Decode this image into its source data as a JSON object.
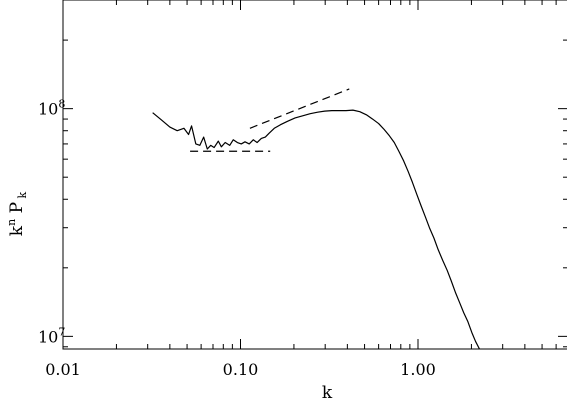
{
  "chart_data": {
    "type": "line",
    "title": "",
    "xlabel": "k",
    "ylabel": "k^n P_k",
    "x_scale": "log",
    "y_scale": "log",
    "xlim": [
      0.01,
      7
    ],
    "ylim": [
      8800000,
      300000000
    ],
    "grid": false,
    "x_ticks": [
      {
        "value": 0.01,
        "label": "0.01"
      },
      {
        "value": 0.1,
        "label": "0.10"
      },
      {
        "value": 1.0,
        "label": "1.00"
      }
    ],
    "y_ticks": [
      {
        "value": 10000000,
        "base": "10",
        "exp": "7"
      },
      {
        "value": 100000000,
        "base": "10",
        "exp": "8"
      }
    ],
    "series": [
      {
        "style": "solid",
        "x": [
          0.032,
          0.036,
          0.04,
          0.044,
          0.048,
          0.051,
          0.053,
          0.056,
          0.059,
          0.062,
          0.065,
          0.068,
          0.071,
          0.075,
          0.078,
          0.082,
          0.087,
          0.091,
          0.096,
          0.101,
          0.106,
          0.112,
          0.118,
          0.124,
          0.131,
          0.138,
          0.145,
          0.155,
          0.168,
          0.184,
          0.203,
          0.224,
          0.247,
          0.272,
          0.298,
          0.327,
          0.358,
          0.393,
          0.43,
          0.47,
          0.512,
          0.555,
          0.6,
          0.645,
          0.69,
          0.735,
          0.78,
          0.83,
          0.88,
          0.93,
          0.985,
          1.04,
          1.1,
          1.16,
          1.23,
          1.3,
          1.38,
          1.46,
          1.54,
          1.63,
          1.72,
          1.81,
          1.91,
          2.01,
          2.11,
          2.22
        ],
        "y": [
          96000000,
          89000000,
          83000000,
          80000000,
          82000000,
          77000000,
          84000000,
          70000000,
          69000000,
          75000000,
          66500000,
          69000000,
          67500000,
          72000000,
          68000000,
          71000000,
          69000000,
          73000000,
          71000000,
          70000000,
          71500000,
          70000000,
          73000000,
          71000000,
          74000000,
          75000000,
          78000000,
          82000000,
          85000000,
          88000000,
          91000000,
          93000000,
          95000000,
          96500000,
          97500000,
          98000000,
          98000000,
          98000000,
          98500000,
          97000000,
          94000000,
          90000000,
          86000000,
          81000000,
          76000000,
          71000000,
          65000000,
          59000000,
          53000000,
          47500000,
          42000000,
          37500000,
          33500000,
          30000000,
          27000000,
          24000000,
          21500000,
          19500000,
          17500000,
          15500000,
          14000000,
          12700000,
          11600000,
          10400000,
          9500000,
          8800000
        ]
      },
      {
        "style": "dashed",
        "x": [
          0.052,
          0.147
        ],
        "y": [
          65000000,
          65000000
        ]
      },
      {
        "style": "dashed",
        "x": [
          0.113,
          0.41
        ],
        "y": [
          82000000,
          122000000
        ]
      }
    ]
  }
}
